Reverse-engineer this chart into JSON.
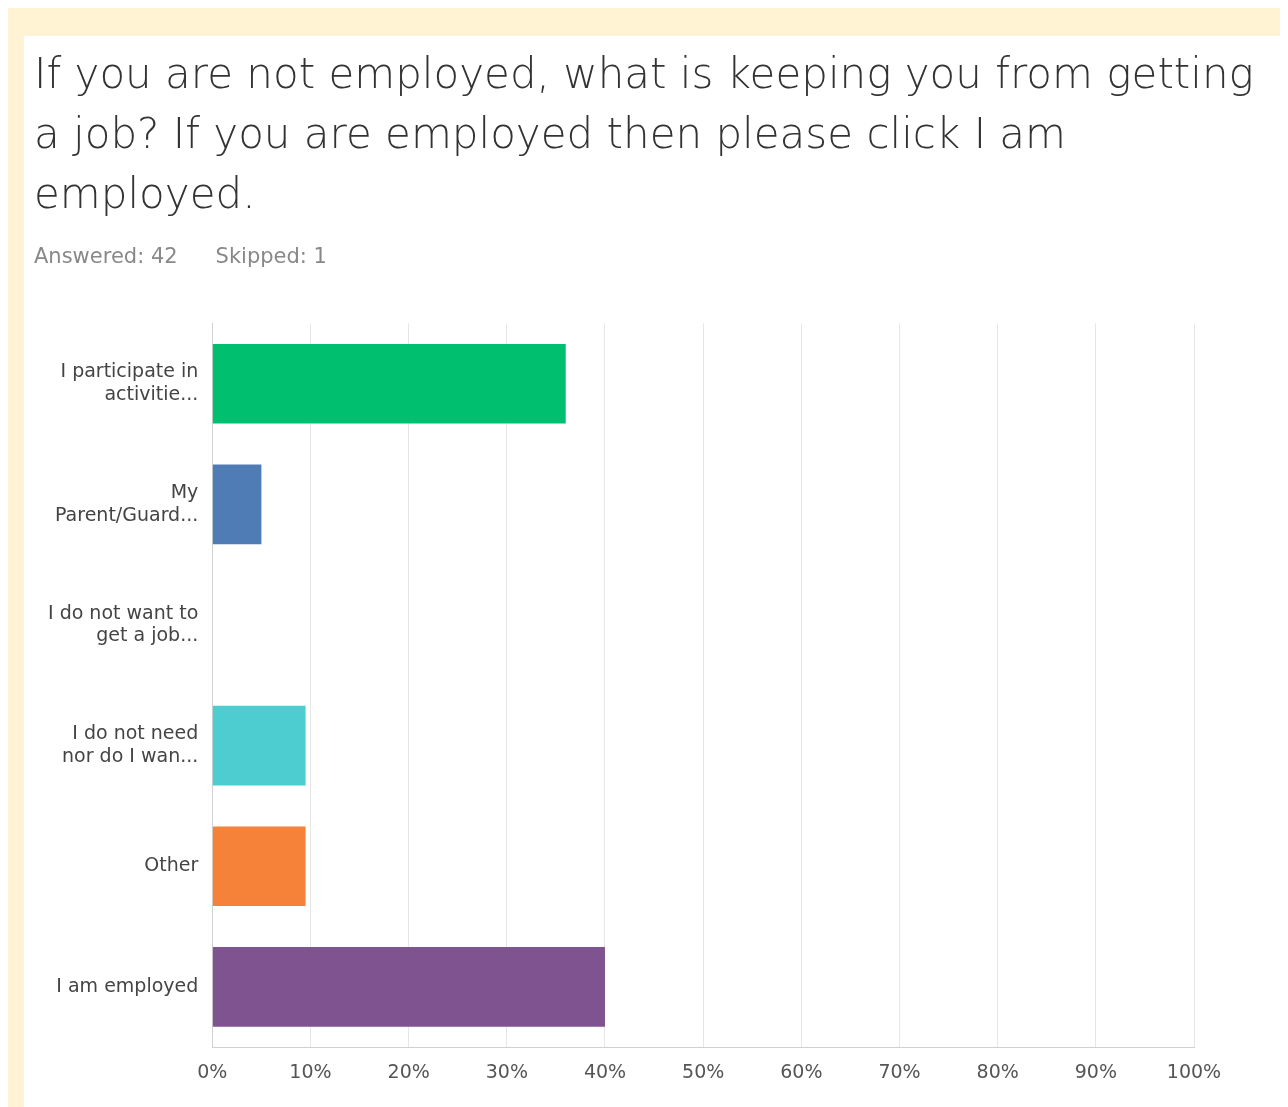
{
  "chart_data": {
    "type": "bar",
    "orientation": "horizontal",
    "title": "If you are not employed, what is keeping you from getting a job? If you are employed then please click I am employed.",
    "annotations": [
      "Answered: 42",
      "Skipped: 1"
    ],
    "categories": [
      "I participate in activitie...",
      "My Parent/Guard...",
      "I do not want to get a job...",
      "I do not need nor do I wan...",
      "Other",
      "I am employed"
    ],
    "values": [
      36,
      5,
      0,
      9.5,
      9.5,
      40
    ],
    "colors": [
      "#00bf6f",
      "#507cb6",
      "#6bc8cd",
      "#4ecdd1",
      "#f58238",
      "#7f5290"
    ],
    "xlim": [
      0,
      100
    ],
    "xticks": [
      {
        "value": 0,
        "label": "0%"
      },
      {
        "value": 10,
        "label": "10%"
      },
      {
        "value": 20,
        "label": "20%"
      },
      {
        "value": 30,
        "label": "30%"
      },
      {
        "value": 40,
        "label": "40%"
      },
      {
        "value": 50,
        "label": "50%"
      },
      {
        "value": 60,
        "label": "60%"
      },
      {
        "value": 70,
        "label": "70%"
      },
      {
        "value": 80,
        "label": "80%"
      },
      {
        "value": 90,
        "label": "90%"
      },
      {
        "value": 100,
        "label": "100%"
      }
    ],
    "grid": "x",
    "legend": false
  }
}
